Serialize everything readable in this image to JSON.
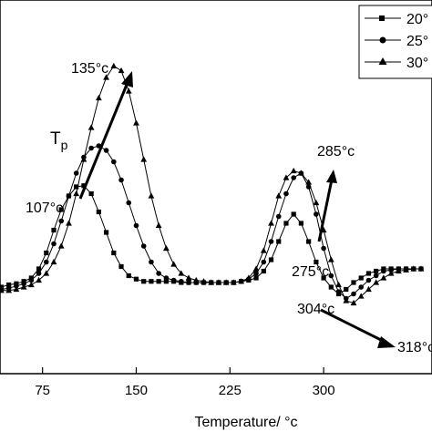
{
  "chart_data": {
    "type": "line",
    "title": "",
    "xlabel": "Temperature/ °c",
    "ylabel": "",
    "xlim": [
      30,
      380
    ],
    "ylim": [
      -1.2,
      10
    ],
    "xticks": [
      75,
      150,
      225,
      300
    ],
    "grid": false,
    "legend": {
      "placement": "top-right"
    },
    "series": [
      {
        "name": "20°",
        "marker": "square",
        "x": [
          30,
          36,
          42,
          48,
          54,
          60,
          66,
          72,
          78,
          84,
          90,
          96,
          102,
          108,
          114,
          120,
          126,
          132,
          138,
          144,
          150,
          156,
          162,
          168,
          174,
          180,
          186,
          192,
          198,
          204,
          210,
          216,
          222,
          228,
          234,
          240,
          246,
          252,
          258,
          264,
          270,
          276,
          282,
          288,
          294,
          300,
          306,
          312,
          318,
          324,
          330,
          336,
          342,
          348,
          354,
          360,
          366,
          372,
          378
        ],
        "y": [
          0.0,
          -0.1,
          -0.2,
          -0.1,
          -0.05,
          0.05,
          0.2,
          0.6,
          1.3,
          2.3,
          3.2,
          3.8,
          4.2,
          4.25,
          3.9,
          3.1,
          2.2,
          1.3,
          0.7,
          0.3,
          0.15,
          0.05,
          0.05,
          0.05,
          0.05,
          0.05,
          0.0,
          0.0,
          0.0,
          0.0,
          0.0,
          0.0,
          0.0,
          0.0,
          0.05,
          0.1,
          0.2,
          0.5,
          1.0,
          1.8,
          2.6,
          3.0,
          2.6,
          1.8,
          0.9,
          0.2,
          -0.2,
          -0.5,
          -0.3,
          0.0,
          0.2,
          0.4,
          0.5,
          0.6,
          0.6,
          0.6,
          0.6,
          0.6,
          0.6
        ]
      },
      {
        "name": "25°",
        "marker": "circle",
        "x": [
          30,
          36,
          42,
          48,
          54,
          60,
          66,
          72,
          78,
          84,
          90,
          96,
          102,
          108,
          114,
          120,
          126,
          132,
          138,
          144,
          150,
          156,
          162,
          168,
          174,
          180,
          186,
          192,
          198,
          204,
          210,
          216,
          222,
          228,
          234,
          240,
          246,
          252,
          258,
          264,
          270,
          276,
          282,
          288,
          294,
          300,
          306,
          312,
          318,
          324,
          330,
          336,
          342,
          348,
          354,
          360,
          366,
          372,
          378
        ],
        "y": [
          0.0,
          -0.15,
          -0.3,
          -0.25,
          -0.15,
          -0.05,
          0.1,
          0.4,
          0.9,
          1.7,
          2.7,
          3.8,
          4.8,
          5.5,
          5.9,
          6.0,
          5.8,
          5.3,
          4.5,
          3.5,
          2.5,
          1.6,
          0.9,
          0.4,
          0.2,
          0.1,
          0.05,
          0.0,
          0.0,
          0.0,
          0.0,
          0.0,
          0.0,
          0.0,
          0.05,
          0.15,
          0.4,
          0.9,
          1.8,
          2.9,
          3.9,
          4.6,
          4.8,
          4.2,
          3.0,
          1.5,
          0.3,
          -0.4,
          -0.7,
          -0.5,
          -0.2,
          0.1,
          0.3,
          0.5,
          0.55,
          0.6,
          0.6,
          0.6,
          0.6
        ]
      },
      {
        "name": "30°",
        "marker": "triangle",
        "x": [
          30,
          36,
          42,
          48,
          54,
          60,
          66,
          72,
          78,
          84,
          90,
          96,
          102,
          108,
          114,
          120,
          126,
          132,
          138,
          144,
          150,
          156,
          162,
          168,
          174,
          180,
          186,
          192,
          198,
          204,
          210,
          216,
          222,
          228,
          234,
          240,
          246,
          252,
          258,
          264,
          270,
          276,
          282,
          288,
          294,
          300,
          306,
          312,
          318,
          324,
          330,
          336,
          342,
          348,
          354,
          360,
          366,
          372,
          378
        ],
        "y": [
          0.0,
          -0.15,
          -0.35,
          -0.35,
          -0.3,
          -0.2,
          -0.1,
          0.1,
          0.4,
          0.9,
          1.6,
          2.6,
          3.9,
          5.4,
          6.8,
          8.1,
          9.0,
          9.5,
          9.3,
          8.4,
          7.0,
          5.4,
          3.8,
          2.5,
          1.5,
          0.8,
          0.4,
          0.2,
          0.1,
          0.05,
          0.0,
          0.0,
          0.0,
          0.0,
          0.05,
          0.2,
          0.6,
          1.4,
          2.6,
          3.8,
          4.6,
          4.9,
          4.8,
          4.4,
          3.5,
          2.3,
          1.0,
          -0.1,
          -0.8,
          -0.9,
          -0.6,
          -0.3,
          0.0,
          0.2,
          0.4,
          0.5,
          0.55,
          0.6,
          0.6
        ]
      }
    ],
    "annotations": [
      {
        "text": "135°c"
      },
      {
        "text": "107°c"
      },
      {
        "text": "285°c"
      },
      {
        "text": "275°c"
      },
      {
        "text": "304°c"
      },
      {
        "text": "318°c"
      },
      {
        "text": "T",
        "sub": "p"
      }
    ]
  }
}
